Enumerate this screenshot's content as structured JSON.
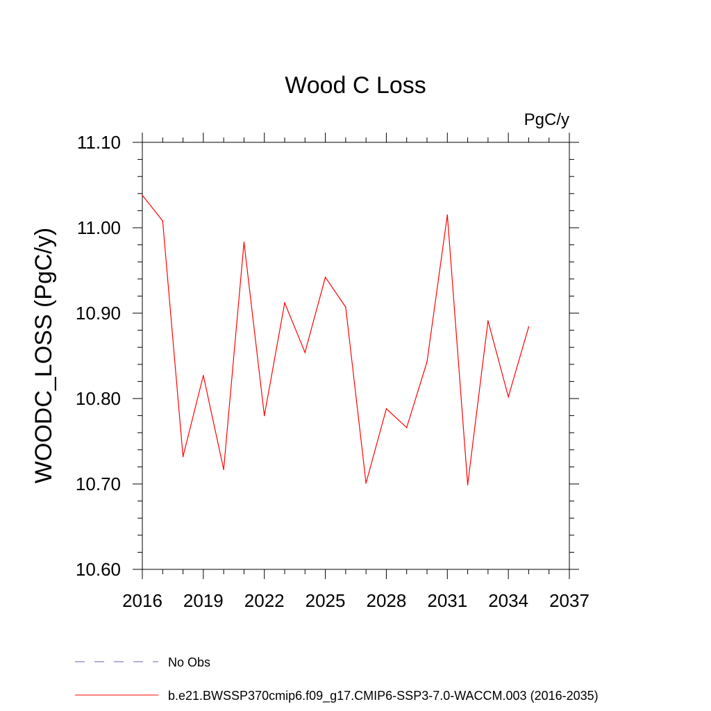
{
  "chart_data": {
    "type": "line",
    "title": "Wood C Loss",
    "units_label": "PgC/y",
    "ylabel": "WOODC_LOSS  (PgC/y)",
    "xlabel": "",
    "xlim": [
      2016,
      2037
    ],
    "ylim": [
      10.6,
      11.1
    ],
    "x_ticks": [
      "2016",
      "2019",
      "2022",
      "2025",
      "2028",
      "2031",
      "2034",
      "2037"
    ],
    "y_ticks": [
      "10.60",
      "10.70",
      "10.80",
      "10.90",
      "11.00",
      "11.10"
    ],
    "grid": false,
    "legend_placement": "bottom",
    "series": [
      {
        "name": "b.e21.BWSSP370cmip6.f09_g17.CMIP6-SSP3-7.0-WACCM.003 (2016-2035)",
        "color": "#ff0000",
        "style": "solid",
        "x": [
          2016,
          2017,
          2018,
          2019,
          2020,
          2021,
          2022,
          2023,
          2024,
          2025,
          2026,
          2027,
          2028,
          2029,
          2030,
          2031,
          2032,
          2033,
          2034,
          2035
        ],
        "values": [
          11.038,
          11.008,
          10.732,
          10.827,
          10.717,
          10.983,
          10.78,
          10.912,
          10.854,
          10.942,
          10.907,
          10.701,
          10.788,
          10.766,
          10.843,
          11.015,
          10.699,
          10.891,
          10.802,
          10.884
        ]
      },
      {
        "name": "No Obs",
        "color": "#6b5fb0",
        "style": "dashed",
        "x": [],
        "values": []
      }
    ]
  }
}
